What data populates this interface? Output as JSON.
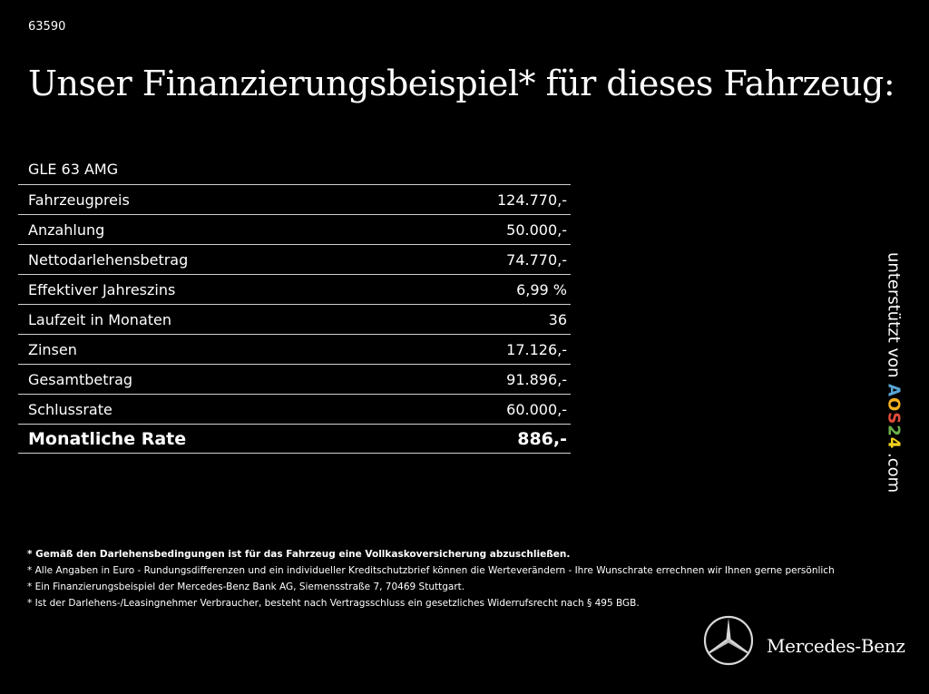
{
  "code": "63590",
  "title": "Unser Finanzierungsbeispiel* für dieses Fahrzeug:",
  "model": "GLE 63 AMG",
  "rows": [
    {
      "label": "Fahrzeugpreis",
      "value": "124.770,-"
    },
    {
      "label": "Anzahlung",
      "value": "50.000,-"
    },
    {
      "label": "Nettodarlehensbetrag",
      "value": "74.770,-"
    },
    {
      "label": "Effektiver Jahreszins",
      "value": "6,99 %"
    },
    {
      "label": "Laufzeit in Monaten",
      "value": "36"
    },
    {
      "label": "Zinsen",
      "value": "17.126,-"
    },
    {
      "label": "Gesamtbetrag",
      "value": "91.896,-"
    },
    {
      "label": "Schlussrate",
      "value": "60.000,-"
    }
  ],
  "total": {
    "label": "Monatliche Rate",
    "value": "886,-"
  },
  "side": {
    "prefix": "unterstützt von",
    "brand_letters": [
      "A",
      "O",
      "S",
      "2",
      "4"
    ],
    "suffix": ".com"
  },
  "notes": [
    "* Gemäß den Darlehensbedingungen ist für das Fahrzeug eine Vollkaskoversicherung abzuschließen.",
    "* Alle Angaben in Euro - Rundungsdifferenzen und ein individueller Kreditschutzbrief können die Werteverändern - Ihre Wunschrate errechnen wir Ihnen gerne persönlich",
    "* Ein Finanzierungsbeispiel der Mercedes-Benz Bank AG, Siemensstraße 7, 70469 Stuttgart.",
    "* Ist der Darlehens-/Leasingnehmer Verbraucher, besteht nach Vertragsschluss ein gesetzliches Widerrufsrecht nach § 495 BGB."
  ],
  "logo": {
    "icon": "mercedes-star-icon",
    "text": "Mercedes-Benz"
  }
}
